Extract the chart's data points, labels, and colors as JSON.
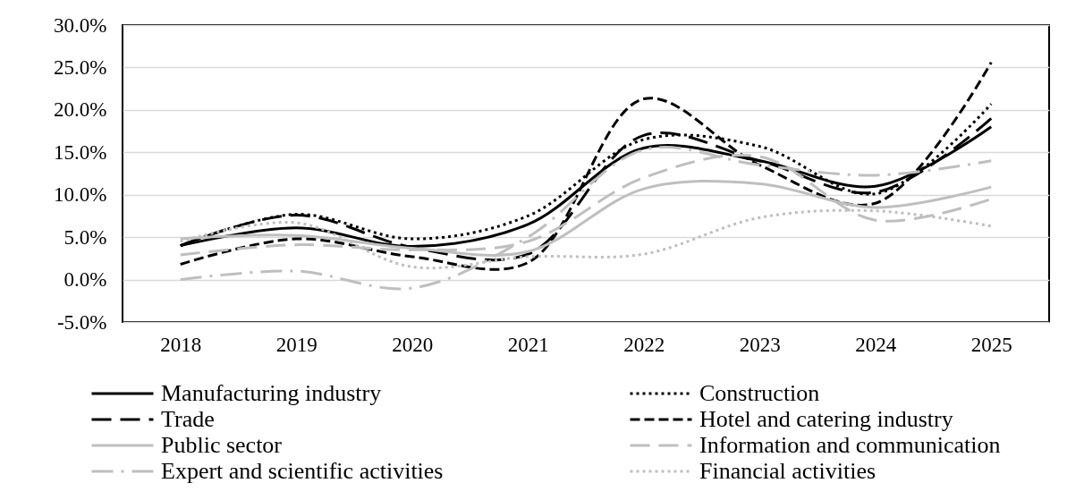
{
  "chart_data": {
    "type": "line",
    "categories": [
      "2018",
      "2019",
      "2020",
      "2021",
      "2022",
      "2023",
      "2024",
      "2025"
    ],
    "series": [
      {
        "name": "Manufacturing industry",
        "color": "#000000",
        "line_style": "solid",
        "values": [
          4.0,
          6.1,
          3.9,
          6.5,
          15.5,
          14.0,
          11.0,
          18.0
        ]
      },
      {
        "name": "Construction",
        "color": "#000000",
        "line_style": "dotted",
        "values": [
          4.0,
          7.7,
          4.8,
          7.5,
          16.5,
          15.7,
          10.1,
          20.7
        ]
      },
      {
        "name": "Trade",
        "color": "#000000",
        "line_style": "longdash",
        "values": [
          4.0,
          7.6,
          3.8,
          3.0,
          17.0,
          14.0,
          10.3,
          19.0
        ]
      },
      {
        "name": "Hotel and catering industry",
        "color": "#000000",
        "line_style": "dashed",
        "values": [
          1.8,
          4.8,
          2.7,
          2.0,
          21.3,
          13.5,
          9.0,
          25.6
        ]
      },
      {
        "name": "Public sector",
        "color": "#bfbfbf",
        "line_style": "solid",
        "values": [
          4.8,
          5.2,
          3.7,
          3.3,
          10.7,
          11.3,
          8.5,
          10.9
        ]
      },
      {
        "name": "Information and communication",
        "color": "#bfbfbf",
        "line_style": "longdash",
        "values": [
          2.9,
          4.1,
          3.5,
          4.5,
          12.0,
          14.5,
          7.0,
          9.5
        ]
      },
      {
        "name": "Expert and scientific activities",
        "color": "#bfbfbf",
        "line_style": "dashdot",
        "values": [
          0.0,
          1.0,
          -1.0,
          5.0,
          15.3,
          13.5,
          12.3,
          14.0
        ]
      },
      {
        "name": "Financial activities",
        "color": "#bfbfbf",
        "line_style": "dotted",
        "values": [
          4.5,
          6.7,
          1.5,
          2.7,
          3.0,
          7.3,
          8.1,
          6.3
        ]
      }
    ],
    "ylim": [
      -5,
      30
    ],
    "yticks": [
      {
        "value": -5,
        "label": "-5.0%"
      },
      {
        "value": 0,
        "label": "0.0%"
      },
      {
        "value": 5,
        "label": "5.0%"
      },
      {
        "value": 10,
        "label": "10.0%"
      },
      {
        "value": 15,
        "label": "15.0%"
      },
      {
        "value": 20,
        "label": "20.0%"
      },
      {
        "value": 25,
        "label": "25.0%"
      },
      {
        "value": 30,
        "label": "30.0%"
      }
    ],
    "grid": "y",
    "legend": "bottom"
  }
}
